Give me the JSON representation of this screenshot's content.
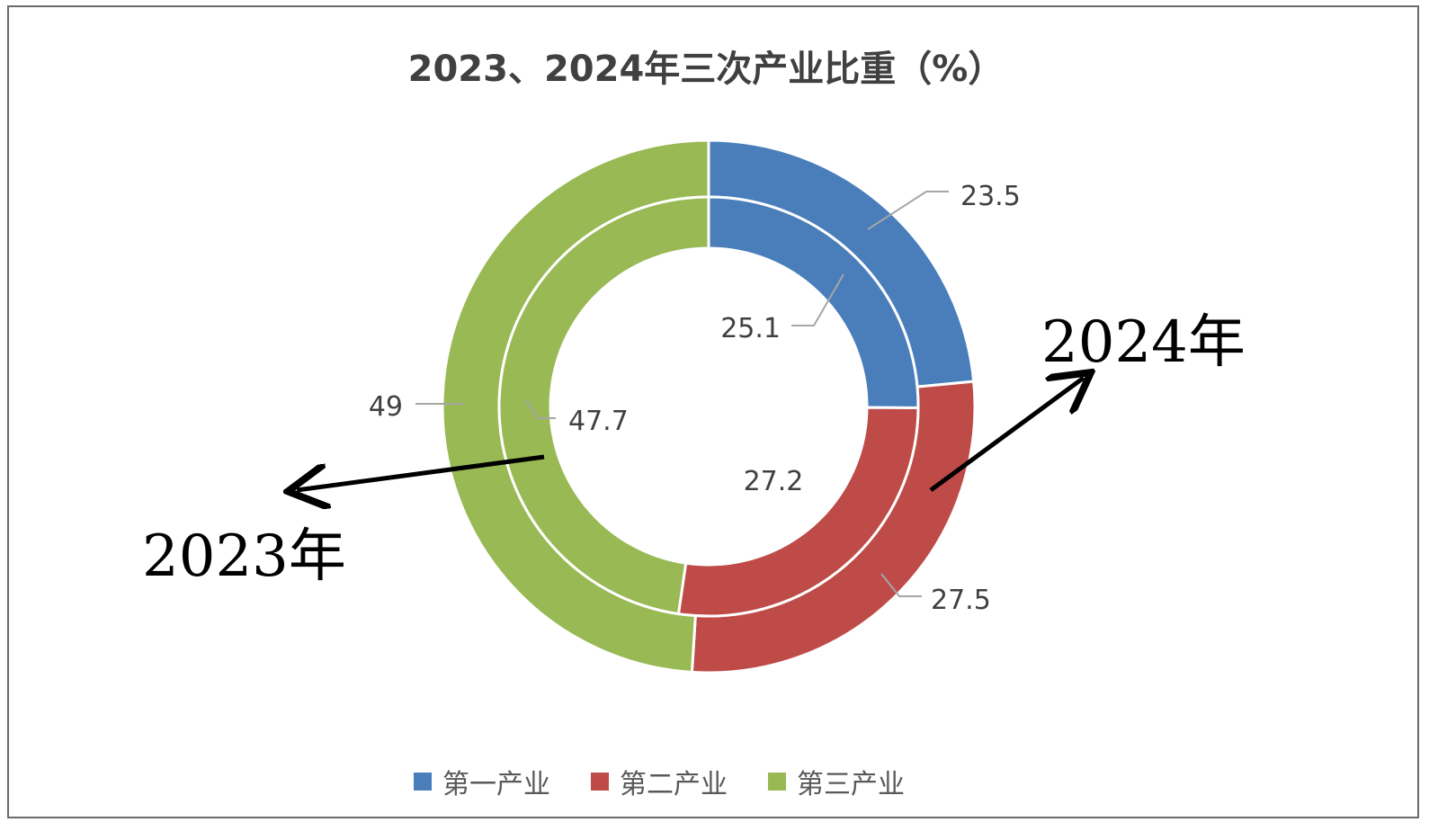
{
  "chart_data": {
    "type": "donut",
    "title": "2023、2024年三次产业比重（%）",
    "categories": [
      "第一产业",
      "第二产业",
      "第三产业"
    ],
    "series": [
      {
        "name": "2024年",
        "ring": "outer",
        "values": [
          23.5,
          27.5,
          49
        ]
      },
      {
        "name": "2023年",
        "ring": "inner",
        "values": [
          25.1,
          27.2,
          47.7
        ]
      }
    ],
    "data_labels": {
      "outer": [
        "23.5",
        "27.5",
        "49"
      ],
      "inner": [
        "25.1",
        "27.2",
        "47.7"
      ]
    },
    "colors": [
      "#4a7ebb",
      "#be4b48",
      "#98b954"
    ],
    "annotations": {
      "outer_year": "2024年",
      "inner_year": "2023年"
    },
    "legend": {
      "position": "bottom",
      "items": [
        "第一产业",
        "第二产业",
        "第三产业"
      ]
    }
  }
}
